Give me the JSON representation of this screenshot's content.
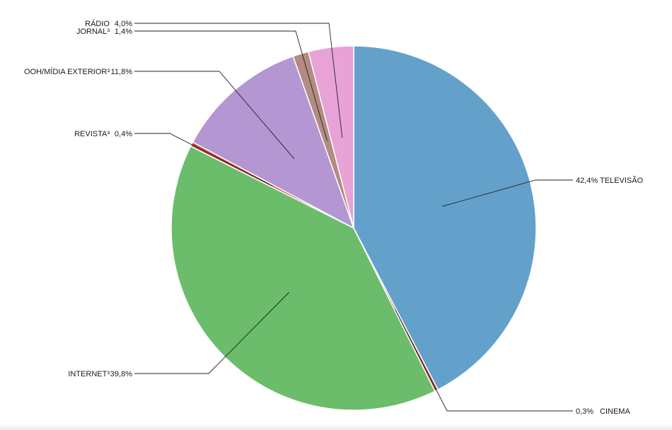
{
  "chart_data": {
    "type": "pie",
    "start": "top",
    "direction": "clockwise",
    "slices": [
      {
        "label": "TELEVISÃO",
        "value": 42.4,
        "value_text": "42,4%",
        "color": "#63a1cb"
      },
      {
        "label": "CINEMA",
        "value": 0.3,
        "value_text": "0,3%",
        "color": "#b8463d"
      },
      {
        "label": "INTERNET³",
        "value": 39.8,
        "value_text": "39,8%",
        "color": "#6bbd6b"
      },
      {
        "label": "REVISTA³",
        "value": 0.4,
        "value_text": "0,4%",
        "color": "#c9423a"
      },
      {
        "label": "OOH/MÍDIA EXTERIOR³",
        "value": 11.8,
        "value_text": "11,8%",
        "color": "#b396d2"
      },
      {
        "label": "JORNAL³",
        "value": 1.4,
        "value_text": "1,4%",
        "color": "#b38b82"
      },
      {
        "label": "RÁDIO",
        "value": 4.0,
        "value_text": "4,0%",
        "color": "#e8a2d6"
      }
    ]
  }
}
